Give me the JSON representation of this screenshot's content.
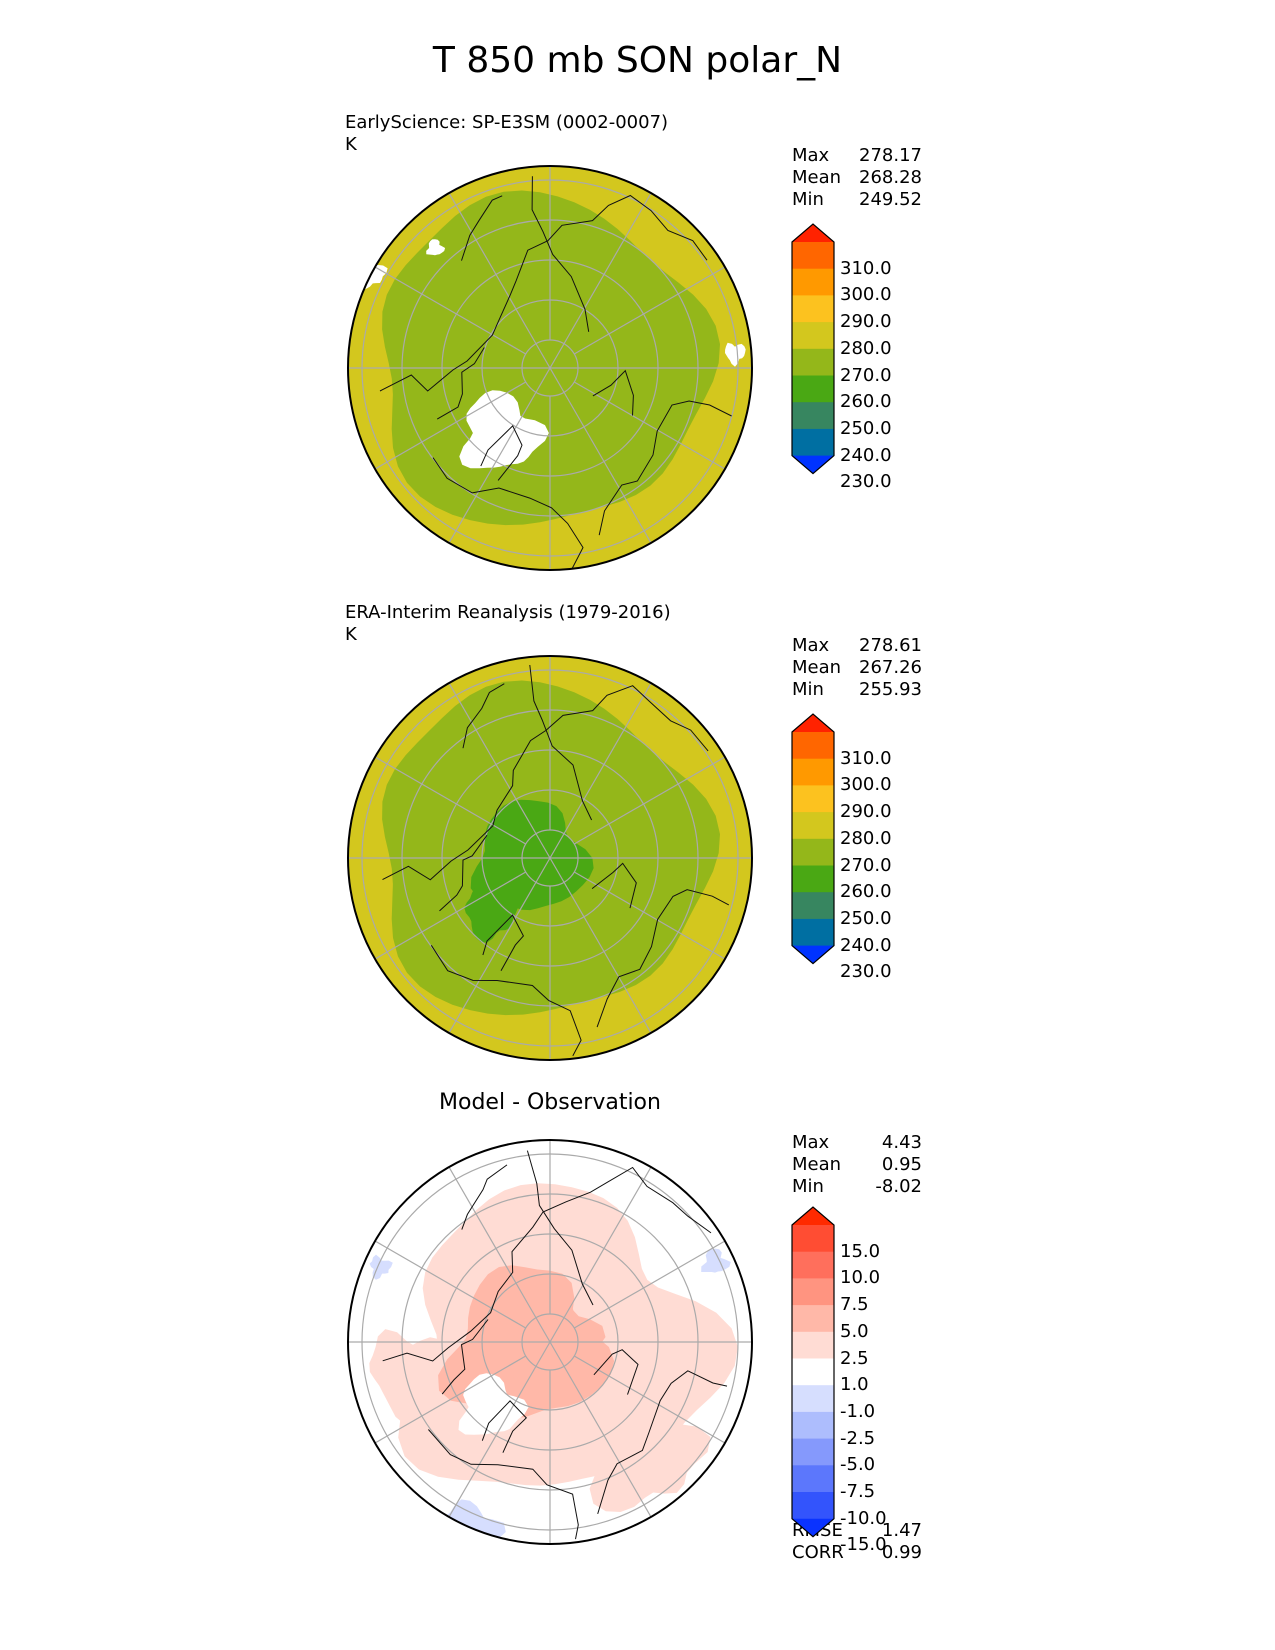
{
  "title": "T 850 mb SON polar_N",
  "panels": [
    {
      "title": "EarlyScience: SP-E3SM (0002-0007)",
      "units": "K",
      "stats": [
        {
          "label": "Max",
          "value": "278.17"
        },
        {
          "label": "Mean",
          "value": "268.28"
        },
        {
          "label": "Min",
          "value": "249.52"
        }
      ],
      "colorbar": {
        "labels": [
          "310.0",
          "300.0",
          "290.0",
          "280.0",
          "270.0",
          "260.0",
          "250.0",
          "240.0",
          "230.0"
        ],
        "colors": [
          "#ff2200",
          "#ff6600",
          "#ff9900",
          "#fcc21f",
          "#d3c71e",
          "#94b71a",
          "#4aa814",
          "#378660",
          "#006fa2",
          "#0033ff"
        ]
      },
      "field_zones": [
        {
          "level": "270-280",
          "color": "#d3c71e"
        },
        {
          "level": "260-270",
          "color": "#94b71a"
        }
      ]
    },
    {
      "title": "ERA-Interim Reanalysis (1979-2016)",
      "units": "K",
      "stats": [
        {
          "label": "Max",
          "value": "278.61"
        },
        {
          "label": "Mean",
          "value": "267.26"
        },
        {
          "label": "Min",
          "value": "255.93"
        }
      ],
      "colorbar": {
        "labels": [
          "310.0",
          "300.0",
          "290.0",
          "280.0",
          "270.0",
          "260.0",
          "250.0",
          "240.0",
          "230.0"
        ],
        "colors": [
          "#ff2200",
          "#ff6600",
          "#ff9900",
          "#fcc21f",
          "#d3c71e",
          "#94b71a",
          "#4aa814",
          "#378660",
          "#006fa2",
          "#0033ff"
        ]
      },
      "field_zones": [
        {
          "level": "270-280",
          "color": "#d3c71e"
        },
        {
          "level": "260-270",
          "color": "#94b71a"
        },
        {
          "level": "250-260",
          "color": "#4aa814"
        }
      ]
    },
    {
      "title": "Model - Observation",
      "units": "",
      "stats": [
        {
          "label": "Max",
          "value": "4.43"
        },
        {
          "label": "Mean",
          "value": "0.95"
        },
        {
          "label": "Min",
          "value": "-8.02"
        }
      ],
      "extra_stats": [
        {
          "label": "RMSE",
          "value": "1.47"
        },
        {
          "label": "CORR",
          "value": "0.99"
        }
      ],
      "colorbar": {
        "labels": [
          "15.0",
          "10.0",
          "7.5",
          "5.0",
          "2.5",
          "1.0",
          "-1.0",
          "-2.5",
          "-5.0",
          "-7.5",
          "-10.0",
          "-15.0"
        ],
        "colors": [
          "#ff2a00",
          "#ff4d33",
          "#ff6f5c",
          "#ff9480",
          "#ffb8a8",
          "#ffdcd4",
          "#ffffff",
          "#d6defe",
          "#adbdfd",
          "#8599fc",
          "#5c77fc",
          "#3354fc",
          "#0a33ff"
        ]
      },
      "field_zones": [
        {
          "level": "-1.0-1.0",
          "color": "#ffffff"
        },
        {
          "level": "1.0-2.5",
          "color": "#ffdcd4"
        },
        {
          "level": "2.5-5.0",
          "color": "#ffb8a8"
        },
        {
          "level": "-2.5--1.0",
          "color": "#d6defe"
        }
      ]
    }
  ],
  "chart_data": [
    {
      "type": "heatmap",
      "projection": "polar stereographic, north",
      "title": "EarlyScience: SP-E3SM (0002-0007)",
      "units": "K",
      "levels": [
        230,
        240,
        250,
        260,
        270,
        280,
        290,
        300,
        310
      ],
      "stats": {
        "max": 278.17,
        "mean": 268.28,
        "min": 249.52
      }
    },
    {
      "type": "heatmap",
      "projection": "polar stereographic, north",
      "title": "ERA-Interim Reanalysis (1979-2016)",
      "units": "K",
      "levels": [
        230,
        240,
        250,
        260,
        270,
        280,
        290,
        300,
        310
      ],
      "stats": {
        "max": 278.61,
        "mean": 267.26,
        "min": 255.93
      }
    },
    {
      "type": "heatmap",
      "projection": "polar stereographic, north",
      "title": "Model - Observation",
      "levels": [
        -15.0,
        -10.0,
        -7.5,
        -5.0,
        -2.5,
        -1.0,
        1.0,
        2.5,
        5.0,
        7.5,
        10.0,
        15.0
      ],
      "stats": {
        "max": 4.43,
        "mean": 0.95,
        "min": -8.02,
        "rmse": 1.47,
        "corr": 0.99
      }
    }
  ]
}
